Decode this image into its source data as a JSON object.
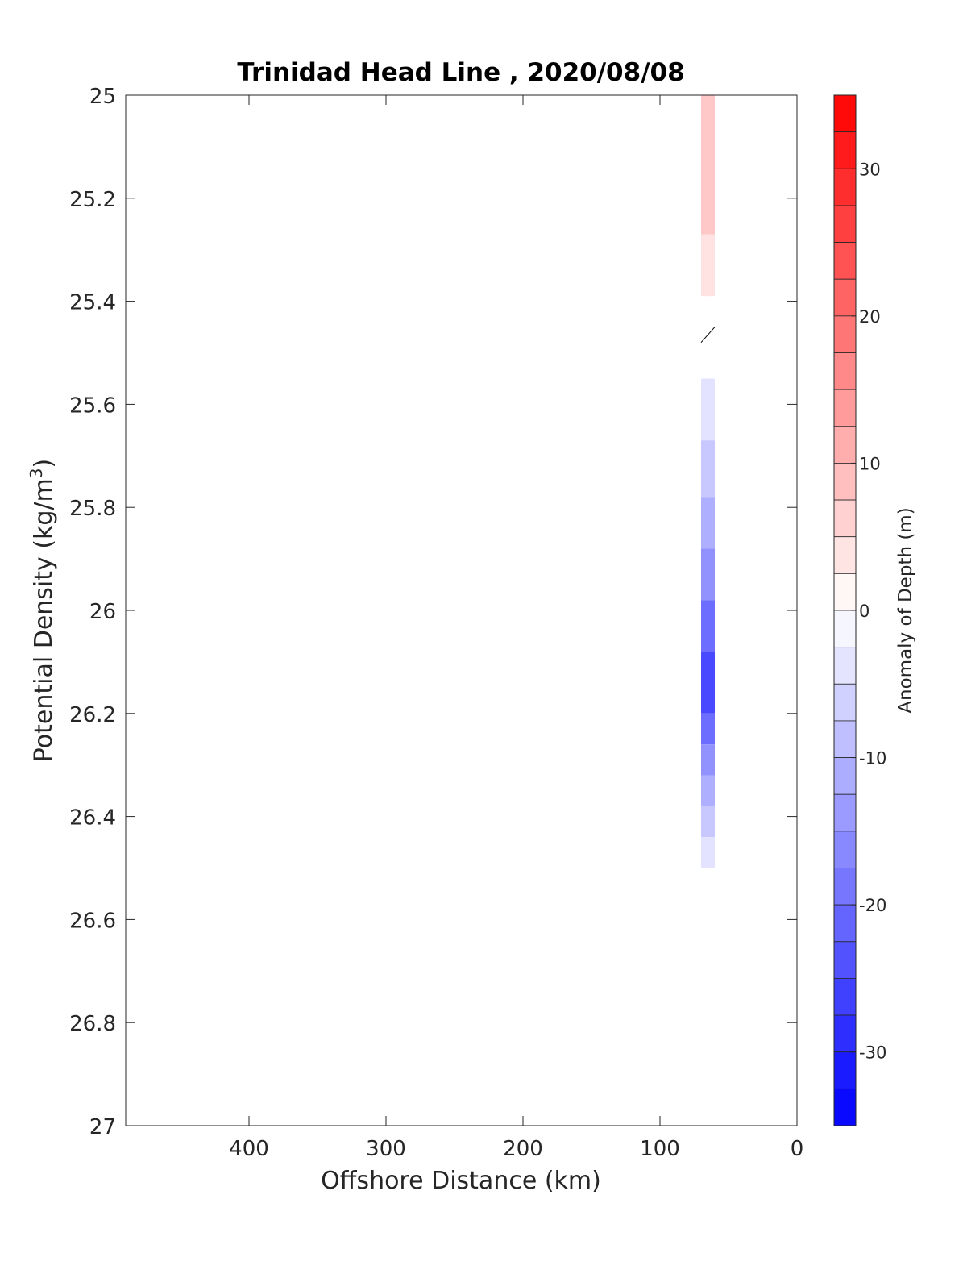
{
  "chart_data": {
    "type": "contour",
    "title": "Trinidad Head Line , 2020/08/08",
    "xlabel": "Offshore Distance (km)",
    "ylabel": "Potential Density (kg/m",
    "ylabel_superscript": "3",
    "ylabel_suffix": ")",
    "xlim": [
      490,
      0
    ],
    "ylim": [
      25,
      27
    ],
    "x_reversed": true,
    "y_reversed": true,
    "x_ticks": [
      400,
      300,
      200,
      100,
      0
    ],
    "y_ticks": [
      25,
      25.2,
      25.4,
      25.6,
      25.8,
      26,
      26.2,
      26.4,
      26.6,
      26.8,
      27
    ],
    "x_tick_labels": [
      "400",
      "300",
      "200",
      "100",
      "0"
    ],
    "y_tick_labels": [
      "25",
      "25.2",
      "25.4",
      "25.6",
      "25.8",
      "26",
      "26.2",
      "26.4",
      "26.6",
      "26.8",
      "27"
    ],
    "grid": false,
    "colorbar": {
      "label": "Anomaly of Depth (m)",
      "range": [
        -35,
        35
      ],
      "levels": 28,
      "ticks": [
        30,
        20,
        10,
        0,
        -10,
        -20,
        -30
      ],
      "tick_labels": [
        "30",
        "20",
        "10",
        "0",
        "-10",
        "-20",
        "-30"
      ],
      "colormap": "blue-white-red",
      "min_color": "#0000ff",
      "mid_color": "#ffffff",
      "max_color": "#ff0000"
    },
    "data_strip": {
      "x_range_km": [
        70,
        60
      ],
      "segments": [
        {
          "density_range": [
            25.0,
            25.27
          ],
          "anomaly": 7.5
        },
        {
          "density_range": [
            25.27,
            25.39
          ],
          "anomaly": 3.8
        },
        {
          "density_range": [
            25.45,
            25.48
          ],
          "anomaly": 0,
          "contour_line": true
        },
        {
          "density_range": [
            25.55,
            25.67
          ],
          "anomaly": -3.8
        },
        {
          "density_range": [
            25.67,
            25.78
          ],
          "anomaly": -7.5
        },
        {
          "density_range": [
            25.78,
            25.88
          ],
          "anomaly": -11
        },
        {
          "density_range": [
            25.88,
            25.98
          ],
          "anomaly": -15
        },
        {
          "density_range": [
            25.98,
            26.08
          ],
          "anomaly": -20
        },
        {
          "density_range": [
            26.08,
            26.2
          ],
          "anomaly": -25
        },
        {
          "density_range": [
            26.2,
            26.26
          ],
          "anomaly": -20
        },
        {
          "density_range": [
            26.26,
            26.32
          ],
          "anomaly": -15
        },
        {
          "density_range": [
            26.32,
            26.38
          ],
          "anomaly": -11
        },
        {
          "density_range": [
            26.38,
            26.44
          ],
          "anomaly": -7.5
        },
        {
          "density_range": [
            26.44,
            26.5
          ],
          "anomaly": -3.8
        }
      ]
    }
  }
}
